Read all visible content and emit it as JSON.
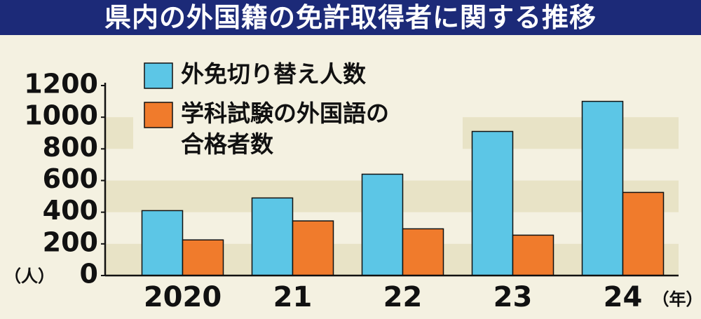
{
  "chart_data": {
    "type": "bar",
    "title": "県内の外国籍の免許取得者に関する推移",
    "y_unit": "（人）",
    "x_unit": "（年）",
    "categories": [
      "2020",
      "21",
      "22",
      "23",
      "24"
    ],
    "series": [
      {
        "name": "外免切り替え人数",
        "color": "#5cc6e6",
        "values": [
          410,
          490,
          640,
          910,
          1100
        ]
      },
      {
        "name": "学科試験の外国語の\n合格者数",
        "color": "#f07b2c",
        "values": [
          225,
          345,
          295,
          255,
          525
        ]
      }
    ],
    "ylim": [
      0,
      1200
    ],
    "yticks": [
      0,
      200,
      400,
      600,
      800,
      1000,
      1200
    ],
    "grid": true
  }
}
